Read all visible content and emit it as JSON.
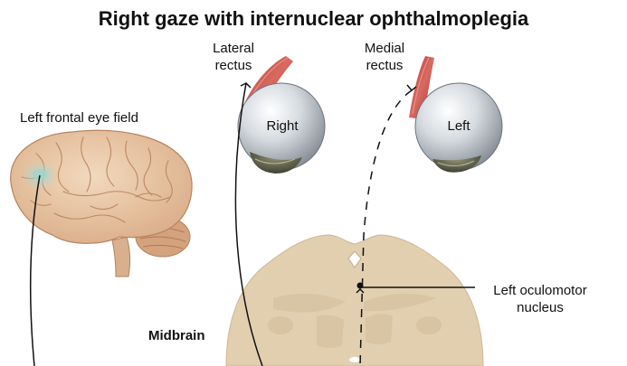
{
  "title": "Right gaze with internuclear ophthalmoplegia",
  "labels": {
    "lateral_rectus": [
      "Lateral",
      "rectus"
    ],
    "medial_rectus": [
      "Medial",
      "rectus"
    ],
    "frontal_eye_field": "Left frontal eye field",
    "right_eye": "Right",
    "left_eye": "Left",
    "oculomotor_nucleus": [
      "Left oculomotor",
      "nucleus"
    ],
    "midbrain": "Midbrain"
  },
  "colors": {
    "brain_tissue": "#e8c8a8",
    "midbrain_tissue": "#e2cfb0",
    "muscle": "#c9524a",
    "eyeball": "#cdd3d8",
    "frontal_eye_field_highlight": "#a8d8d0"
  },
  "icons": {
    "brain": "brain-illustration",
    "eyeballs": "eyeball-illustration",
    "midbrain": "midbrain-cross-section"
  }
}
